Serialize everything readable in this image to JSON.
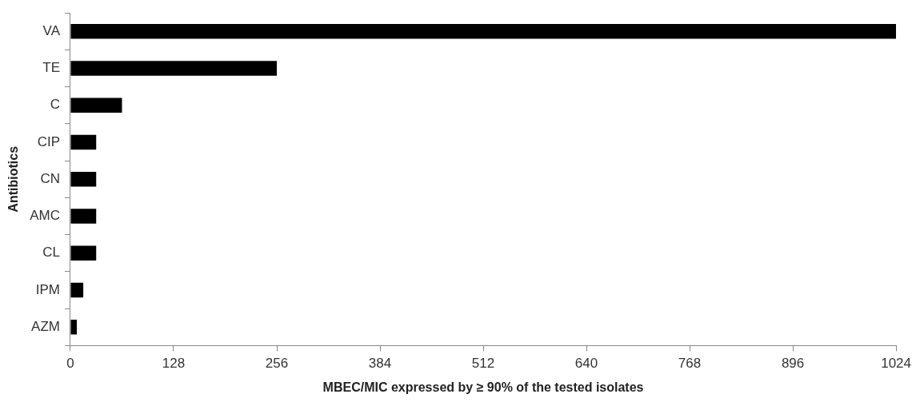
{
  "chart_data": {
    "type": "bar",
    "orientation": "horizontal",
    "xlabel": "MBEC/MIC expressed by ≥ 90% of the tested isolates",
    "ylabel": "Antibiotics",
    "categories": [
      "VA",
      "TE",
      "C",
      "CIP",
      "CN",
      "AMC",
      "CL",
      "IPM",
      "AZM"
    ],
    "values": [
      1024,
      256,
      64,
      32,
      32,
      32,
      32,
      16,
      8
    ],
    "color": "#000000",
    "xlim": [
      0,
      1024
    ],
    "xticks": [
      0,
      128,
      256,
      384,
      512,
      640,
      768,
      896,
      1024
    ],
    "grid": false,
    "legend": false
  }
}
